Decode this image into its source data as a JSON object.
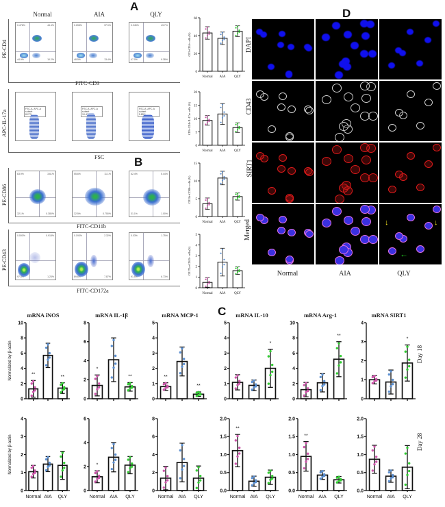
{
  "panels": {
    "A": "A",
    "B": "B",
    "C": "C",
    "D": "D"
  },
  "flow": {
    "groups": [
      "Normal",
      "AIA",
      "QLY"
    ],
    "rows": [
      {
        "id": "cd3-cd4",
        "y_label": "PE-CD4",
        "x_label": "FITC-CD3",
        "type": "quadrant",
        "quadrants": [
          {
            "Q1": "0.476%",
            "Q2": "44.4%",
            "Q3": "10.2%",
            "Q4": "44.9%"
          },
          {
            "Q1": "0.208%",
            "Q2": "37.9%",
            "Q3": "13.4%",
            "Q4": "48.5%"
          },
          {
            "Q1": "0.245%",
            "Q2": "43.7%",
            "Q3": "9.38%",
            "Q4": "47.0%"
          }
        ]
      },
      {
        "id": "fsc-il17a",
        "y_label": "APC-IL-17a",
        "x_label": "FSC",
        "type": "gate",
        "gate_name": "FSC-A, APC-A subset",
        "gate_values": [
          "8.27%",
          "10.4%",
          "5.85%"
        ],
        "x_ticks": [
          "0",
          "50K",
          "100K",
          "150K",
          "200K",
          "250K"
        ]
      },
      {
        "id": "cd11b-cd86",
        "y_label": "PE-CD86",
        "x_label": "FITC-CD11b",
        "type": "quadrant",
        "quadrants": [
          {
            "Q1": "63.9%",
            "Q2": "3.61%",
            "Q3": "0.380%",
            "Q4": "32.1%"
          },
          {
            "Q1": "55.6%",
            "Q2": "11.1%",
            "Q3": "0.750%",
            "Q4": "32.5%"
          },
          {
            "Q1": "62.4%",
            "Q2": "5.44%",
            "Q3": "1.00%",
            "Q4": "31.1%"
          }
        ]
      },
      {
        "id": "cd172a-cd43",
        "y_label": "PE-CD43",
        "x_label": "FITC-CD172a",
        "type": "quadrant",
        "quadrants": [
          {
            "Q1": "0.000%",
            "Q2": "0.918%",
            "Q3": "1.23%",
            "Q4": "97.8%"
          },
          {
            "Q1": "0.193%",
            "Q2": "2.32%",
            "Q3": "7.87%",
            "Q4": "89.6%"
          },
          {
            "Q1": "0.03%",
            "Q2": "1.75%",
            "Q3": "6.73%",
            "Q4": "91.5%"
          }
        ]
      }
    ]
  },
  "chart_data": [
    {
      "type": "bar",
      "panel": "A",
      "title": "",
      "ylabel": "CD3+CD4+ cells (%)",
      "categories": [
        "Normal",
        "AIA",
        "QLY"
      ],
      "values": [
        43,
        37,
        45
      ],
      "errors": [
        7,
        7,
        6
      ],
      "ylim": [
        0,
        60
      ],
      "yticks": [
        0,
        20,
        40,
        60
      ]
    },
    {
      "type": "bar",
      "panel": "A",
      "title": "",
      "ylabel": "CD3+CD4+IL-17a+ cells (%)",
      "categories": [
        "Normal",
        "AIA",
        "QLY"
      ],
      "values": [
        9.3,
        11.7,
        6.6
      ],
      "errors": [
        1.8,
        3.9,
        1.8
      ],
      "ylim": [
        0,
        20
      ],
      "yticks": [
        0,
        5,
        10,
        15,
        20
      ]
    },
    {
      "type": "bar",
      "panel": "B",
      "title": "",
      "ylabel": "CD11b+CD86+ cells (%)",
      "categories": [
        "Normal",
        "AIA",
        "QLY"
      ],
      "values": [
        3.6,
        10.8,
        5.6
      ],
      "errors": [
        1.6,
        1.9,
        1.0
      ],
      "ylim": [
        0,
        15
      ],
      "yticks": [
        0,
        5,
        10,
        15
      ]
    },
    {
      "type": "bar",
      "panel": "B",
      "title": "",
      "ylabel": "CD172a+CD43+ cells (%)",
      "categories": [
        "Normal",
        "AIA",
        "QLY"
      ],
      "values": [
        0.5,
        2.4,
        1.6
      ],
      "errors": [
        0.45,
        1.3,
        0.35
      ],
      "ylim": [
        0,
        5
      ],
      "yticks": [
        0,
        1,
        2,
        3,
        4,
        5
      ]
    },
    {
      "type": "bar",
      "panel": "C",
      "day": "Day 18",
      "title": "mRNA iNOS",
      "ylabel": "Normalized by β-actin",
      "categories": [
        "Normal",
        "AIA",
        "QLY"
      ],
      "values": [
        1.3,
        5.7,
        1.4
      ],
      "errors": [
        1.1,
        1.6,
        0.7
      ],
      "significance": [
        "**",
        "",
        "**"
      ],
      "ylim": [
        0,
        10
      ],
      "yticks": [
        0,
        2,
        4,
        6,
        8,
        10
      ]
    },
    {
      "type": "bar",
      "panel": "C",
      "day": "Day 18",
      "title": "mRNA IL-1β",
      "ylabel": "",
      "categories": [
        "Normal",
        "AIA",
        "QLY"
      ],
      "values": [
        1.4,
        4.1,
        1.25
      ],
      "errors": [
        1.1,
        2.3,
        0.45
      ],
      "significance": [
        "*",
        "",
        "**"
      ],
      "ylim": [
        0,
        8
      ],
      "yticks": [
        0,
        2,
        4,
        6,
        8
      ]
    },
    {
      "type": "bar",
      "panel": "C",
      "day": "Day 18",
      "title": "mRNA MCP-1",
      "ylabel": "",
      "categories": [
        "Normal",
        "AIA",
        "QLY"
      ],
      "values": [
        0.8,
        2.45,
        0.3
      ],
      "errors": [
        0.25,
        0.95,
        0.15
      ],
      "significance": [
        "**",
        "",
        "**"
      ],
      "ylim": [
        0,
        5
      ],
      "yticks": [
        0,
        1,
        2,
        3,
        4,
        5
      ]
    },
    {
      "type": "bar",
      "panel": "C",
      "day": "Day 18",
      "title": "mRNA IL-10",
      "ylabel": "",
      "categories": [
        "Normal",
        "AIA",
        "QLY"
      ],
      "values": [
        1.08,
        0.88,
        2.0
      ],
      "errors": [
        0.5,
        0.35,
        1.25
      ],
      "significance": [
        "",
        "",
        "*"
      ],
      "ylim": [
        0,
        5
      ],
      "yticks": [
        0,
        1,
        2,
        3,
        4,
        5
      ]
    },
    {
      "type": "bar",
      "panel": "C",
      "day": "Day 18",
      "title": "mRNA Arg-1",
      "ylabel": "",
      "categories": [
        "Normal",
        "AIA",
        "QLY"
      ],
      "values": [
        1.2,
        2.1,
        5.2
      ],
      "errors": [
        0.95,
        1.2,
        2.3
      ],
      "significance": [
        "",
        "",
        "**"
      ],
      "ylim": [
        0,
        10
      ],
      "yticks": [
        0,
        2,
        4,
        6,
        8,
        10
      ]
    },
    {
      "type": "bar",
      "panel": "C",
      "day": "Day 18",
      "title": "mRNA SIRT1",
      "ylabel": "",
      "categories": [
        "Normal",
        "AIA",
        "QLY"
      ],
      "values": [
        1.0,
        0.88,
        1.88
      ],
      "errors": [
        0.22,
        0.63,
        0.95
      ],
      "significance": [
        "",
        "",
        "*"
      ],
      "ylim": [
        0,
        4
      ],
      "yticks": [
        0,
        1,
        2,
        3,
        4
      ]
    },
    {
      "type": "bar",
      "panel": "C",
      "day": "Day 28",
      "title": "",
      "ylabel": "Normalized by β-actin",
      "categories": [
        "Normal",
        "AIA",
        "QLY"
      ],
      "values": [
        1.05,
        1.47,
        1.4
      ],
      "errors": [
        0.35,
        0.42,
        0.78
      ],
      "significance": [
        "",
        "",
        ""
      ],
      "ylim": [
        0,
        4
      ],
      "yticks": [
        0,
        1,
        2,
        3,
        4
      ]
    },
    {
      "type": "bar",
      "panel": "C",
      "day": "Day 28",
      "title": "",
      "ylabel": "",
      "categories": [
        "Normal",
        "AIA",
        "QLY"
      ],
      "values": [
        1.15,
        2.78,
        2.12
      ],
      "errors": [
        0.5,
        1.22,
        0.72
      ],
      "significance": [
        "*",
        "",
        ""
      ],
      "ylim": [
        0,
        6
      ],
      "yticks": [
        0,
        2,
        4,
        6
      ]
    },
    {
      "type": "bar",
      "panel": "C",
      "day": "Day 28",
      "title": "",
      "ylabel": "",
      "categories": [
        "Normal",
        "AIA",
        "QLY"
      ],
      "values": [
        1.38,
        3.12,
        1.38
      ],
      "errors": [
        1.3,
        2.15,
        1.35
      ],
      "significance": [
        "",
        "",
        ""
      ],
      "ylim": [
        0,
        8
      ],
      "yticks": [
        0,
        2,
        4,
        6,
        8
      ]
    },
    {
      "type": "bar",
      "panel": "C",
      "day": "Day 28",
      "title": "",
      "ylabel": "",
      "categories": [
        "Normal",
        "AIA",
        "QLY"
      ],
      "values": [
        1.11,
        0.26,
        0.37
      ],
      "errors": [
        0.45,
        0.14,
        0.2
      ],
      "significance": [
        "**",
        "",
        ""
      ],
      "ylim": [
        0,
        2.0
      ],
      "yticks": [
        0.0,
        0.5,
        1.0,
        1.5,
        2.0
      ]
    },
    {
      "type": "bar",
      "panel": "C",
      "day": "Day 28",
      "title": "",
      "ylabel": "",
      "categories": [
        "Normal",
        "AIA",
        "QLY"
      ],
      "values": [
        0.95,
        0.43,
        0.3
      ],
      "errors": [
        0.41,
        0.12,
        0.09
      ],
      "significance": [
        "**",
        "",
        ""
      ],
      "ylim": [
        0,
        2.0
      ],
      "yticks": [
        0.0,
        0.5,
        1.0,
        1.5,
        2.0
      ]
    },
    {
      "type": "bar",
      "panel": "C",
      "day": "Day 28",
      "title": "",
      "ylabel": "",
      "categories": [
        "Normal",
        "AIA",
        "QLY"
      ],
      "values": [
        0.87,
        0.4,
        0.65
      ],
      "errors": [
        0.39,
        0.17,
        0.6
      ],
      "significance": [
        "",
        "",
        ""
      ],
      "ylim": [
        0,
        2.0
      ],
      "yticks": [
        0.0,
        0.5,
        1.0,
        1.5,
        2.0
      ]
    }
  ],
  "mrna": {
    "day_labels": [
      "Day 18",
      "Day 28"
    ],
    "group_colors": {
      "Normal": "#cc55aa",
      "AIA": "#5b8fd0",
      "QLY": "#33cc33"
    }
  },
  "if": {
    "rows": [
      "DAPI",
      "CD43",
      "SIRT1",
      "Merged"
    ],
    "cols": [
      "Normal",
      "AIA",
      "QLY"
    ],
    "arrow_colors": {
      "yellow": "#f0e020",
      "green": "#22cc22"
    }
  }
}
